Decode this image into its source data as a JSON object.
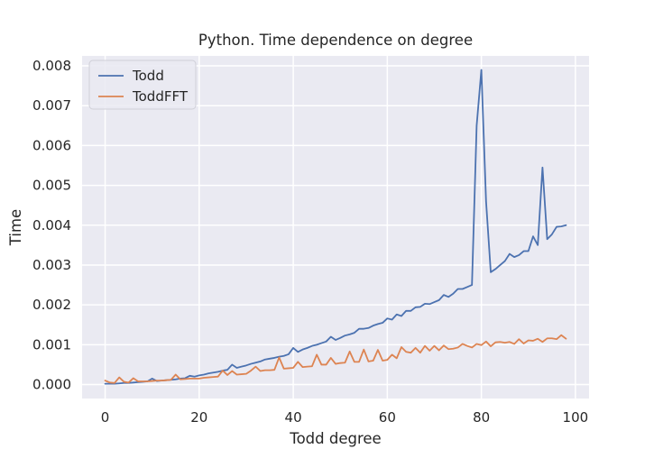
{
  "chart_data": {
    "type": "line",
    "title": "Python. Time dependence on degree",
    "xlabel": "Todd degree",
    "ylabel": "Time",
    "xlim": [
      -4.9,
      102.9
    ],
    "ylim": [
      -0.00035,
      0.00825
    ],
    "xticks": [
      0,
      20,
      40,
      60,
      80,
      100
    ],
    "xtick_labels": [
      "0",
      "20",
      "40",
      "60",
      "80",
      "100"
    ],
    "yticks": [
      0.0,
      0.001,
      0.002,
      0.003,
      0.004,
      0.005,
      0.006,
      0.007,
      0.008
    ],
    "ytick_labels": [
      "0.000",
      "0.001",
      "0.002",
      "0.003",
      "0.004",
      "0.005",
      "0.006",
      "0.007",
      "0.008"
    ],
    "grid": true,
    "legend": "top-left",
    "background": "#eaeaf2",
    "series": [
      {
        "name": "Todd",
        "color": "#4c72b0",
        "x": [
          0,
          1,
          2,
          3,
          4,
          5,
          6,
          7,
          8,
          9,
          10,
          11,
          12,
          13,
          14,
          15,
          16,
          17,
          18,
          19,
          20,
          21,
          22,
          23,
          24,
          25,
          26,
          27,
          28,
          29,
          30,
          31,
          32,
          33,
          34,
          35,
          36,
          37,
          38,
          39,
          40,
          41,
          42,
          43,
          44,
          45,
          46,
          47,
          48,
          49,
          50,
          51,
          52,
          53,
          54,
          55,
          56,
          57,
          58,
          59,
          60,
          61,
          62,
          63,
          64,
          65,
          66,
          67,
          68,
          69,
          70,
          71,
          72,
          73,
          74,
          75,
          76,
          77,
          78,
          79,
          80,
          81,
          82,
          83,
          84,
          85,
          86,
          87,
          88,
          89,
          90,
          91,
          92,
          93,
          94,
          95,
          96,
          97,
          98
        ],
        "y": [
          2e-05,
          2e-05,
          2e-05,
          3e-05,
          4e-05,
          4e-05,
          5e-05,
          6e-05,
          7e-05,
          8e-05,
          0.00015,
          9e-05,
          0.0001,
          0.00011,
          0.00012,
          0.00013,
          0.00015,
          0.00016,
          0.00022,
          0.0002,
          0.00023,
          0.00025,
          0.00028,
          0.0003,
          0.00032,
          0.00035,
          0.00037,
          0.0005,
          0.00042,
          0.00045,
          0.00048,
          0.00052,
          0.00055,
          0.00058,
          0.00063,
          0.00065,
          0.00067,
          0.0007,
          0.00072,
          0.00076,
          0.00092,
          0.00082,
          0.00088,
          0.00092,
          0.00097,
          0.001,
          0.00104,
          0.00108,
          0.0012,
          0.00112,
          0.00117,
          0.00123,
          0.00126,
          0.0013,
          0.0014,
          0.0014,
          0.00142,
          0.00148,
          0.00152,
          0.00155,
          0.00166,
          0.00163,
          0.00176,
          0.00172,
          0.00185,
          0.00185,
          0.00194,
          0.00195,
          0.00203,
          0.00202,
          0.00207,
          0.00212,
          0.00225,
          0.0022,
          0.00228,
          0.0024,
          0.0024,
          0.00245,
          0.0025,
          0.0065,
          0.0079,
          0.0046,
          0.00282,
          0.0029,
          0.003,
          0.0031,
          0.00328,
          0.0032,
          0.00325,
          0.00335,
          0.00335,
          0.00372,
          0.0035,
          0.00545,
          0.00365,
          0.00377,
          0.00396,
          0.00397,
          0.004
        ]
      },
      {
        "name": "ToddFFT",
        "color": "#dd8452",
        "x": [
          0,
          1,
          2,
          3,
          4,
          5,
          6,
          7,
          8,
          9,
          10,
          11,
          12,
          13,
          14,
          15,
          16,
          17,
          18,
          19,
          20,
          21,
          22,
          23,
          24,
          25,
          26,
          27,
          28,
          29,
          30,
          31,
          32,
          33,
          34,
          35,
          36,
          37,
          38,
          39,
          40,
          41,
          42,
          43,
          44,
          45,
          46,
          47,
          48,
          49,
          50,
          51,
          52,
          53,
          54,
          55,
          56,
          57,
          58,
          59,
          60,
          61,
          62,
          63,
          64,
          65,
          66,
          67,
          68,
          69,
          70,
          71,
          72,
          73,
          74,
          75,
          76,
          77,
          78,
          79,
          80,
          81,
          82,
          83,
          84,
          85,
          86,
          87,
          88,
          89,
          90,
          91,
          92,
          93,
          94,
          95,
          96,
          97,
          98
        ],
        "y": [
          0.0001,
          5e-05,
          4e-05,
          0.00018,
          7e-05,
          5e-05,
          0.00016,
          8e-05,
          8e-05,
          8e-05,
          9e-05,
          0.0001,
          0.0001,
          0.00011,
          0.00012,
          0.00025,
          0.00013,
          0.00014,
          0.00015,
          0.00015,
          0.00015,
          0.00017,
          0.00018,
          0.00019,
          0.0002,
          0.00035,
          0.00024,
          0.00034,
          0.00025,
          0.00026,
          0.00027,
          0.00035,
          0.00045,
          0.00034,
          0.00036,
          0.00036,
          0.00037,
          0.00068,
          0.0004,
          0.00041,
          0.00042,
          0.00057,
          0.00044,
          0.00045,
          0.00046,
          0.00075,
          0.0005,
          0.0005,
          0.00067,
          0.00052,
          0.00054,
          0.00055,
          0.00083,
          0.00057,
          0.00057,
          0.00088,
          0.00058,
          0.0006,
          0.00087,
          0.0006,
          0.00062,
          0.00075,
          0.00066,
          0.00094,
          0.00082,
          0.0008,
          0.00092,
          0.0008,
          0.00097,
          0.00085,
          0.00097,
          0.00086,
          0.00098,
          0.00089,
          0.0009,
          0.00093,
          0.00102,
          0.00097,
          0.00093,
          0.00102,
          0.00099,
          0.00108,
          0.00096,
          0.00106,
          0.00107,
          0.00105,
          0.00107,
          0.00102,
          0.00114,
          0.00103,
          0.00111,
          0.0011,
          0.00115,
          0.00107,
          0.00116,
          0.00116,
          0.00114,
          0.00124,
          0.00115
        ]
      }
    ]
  }
}
